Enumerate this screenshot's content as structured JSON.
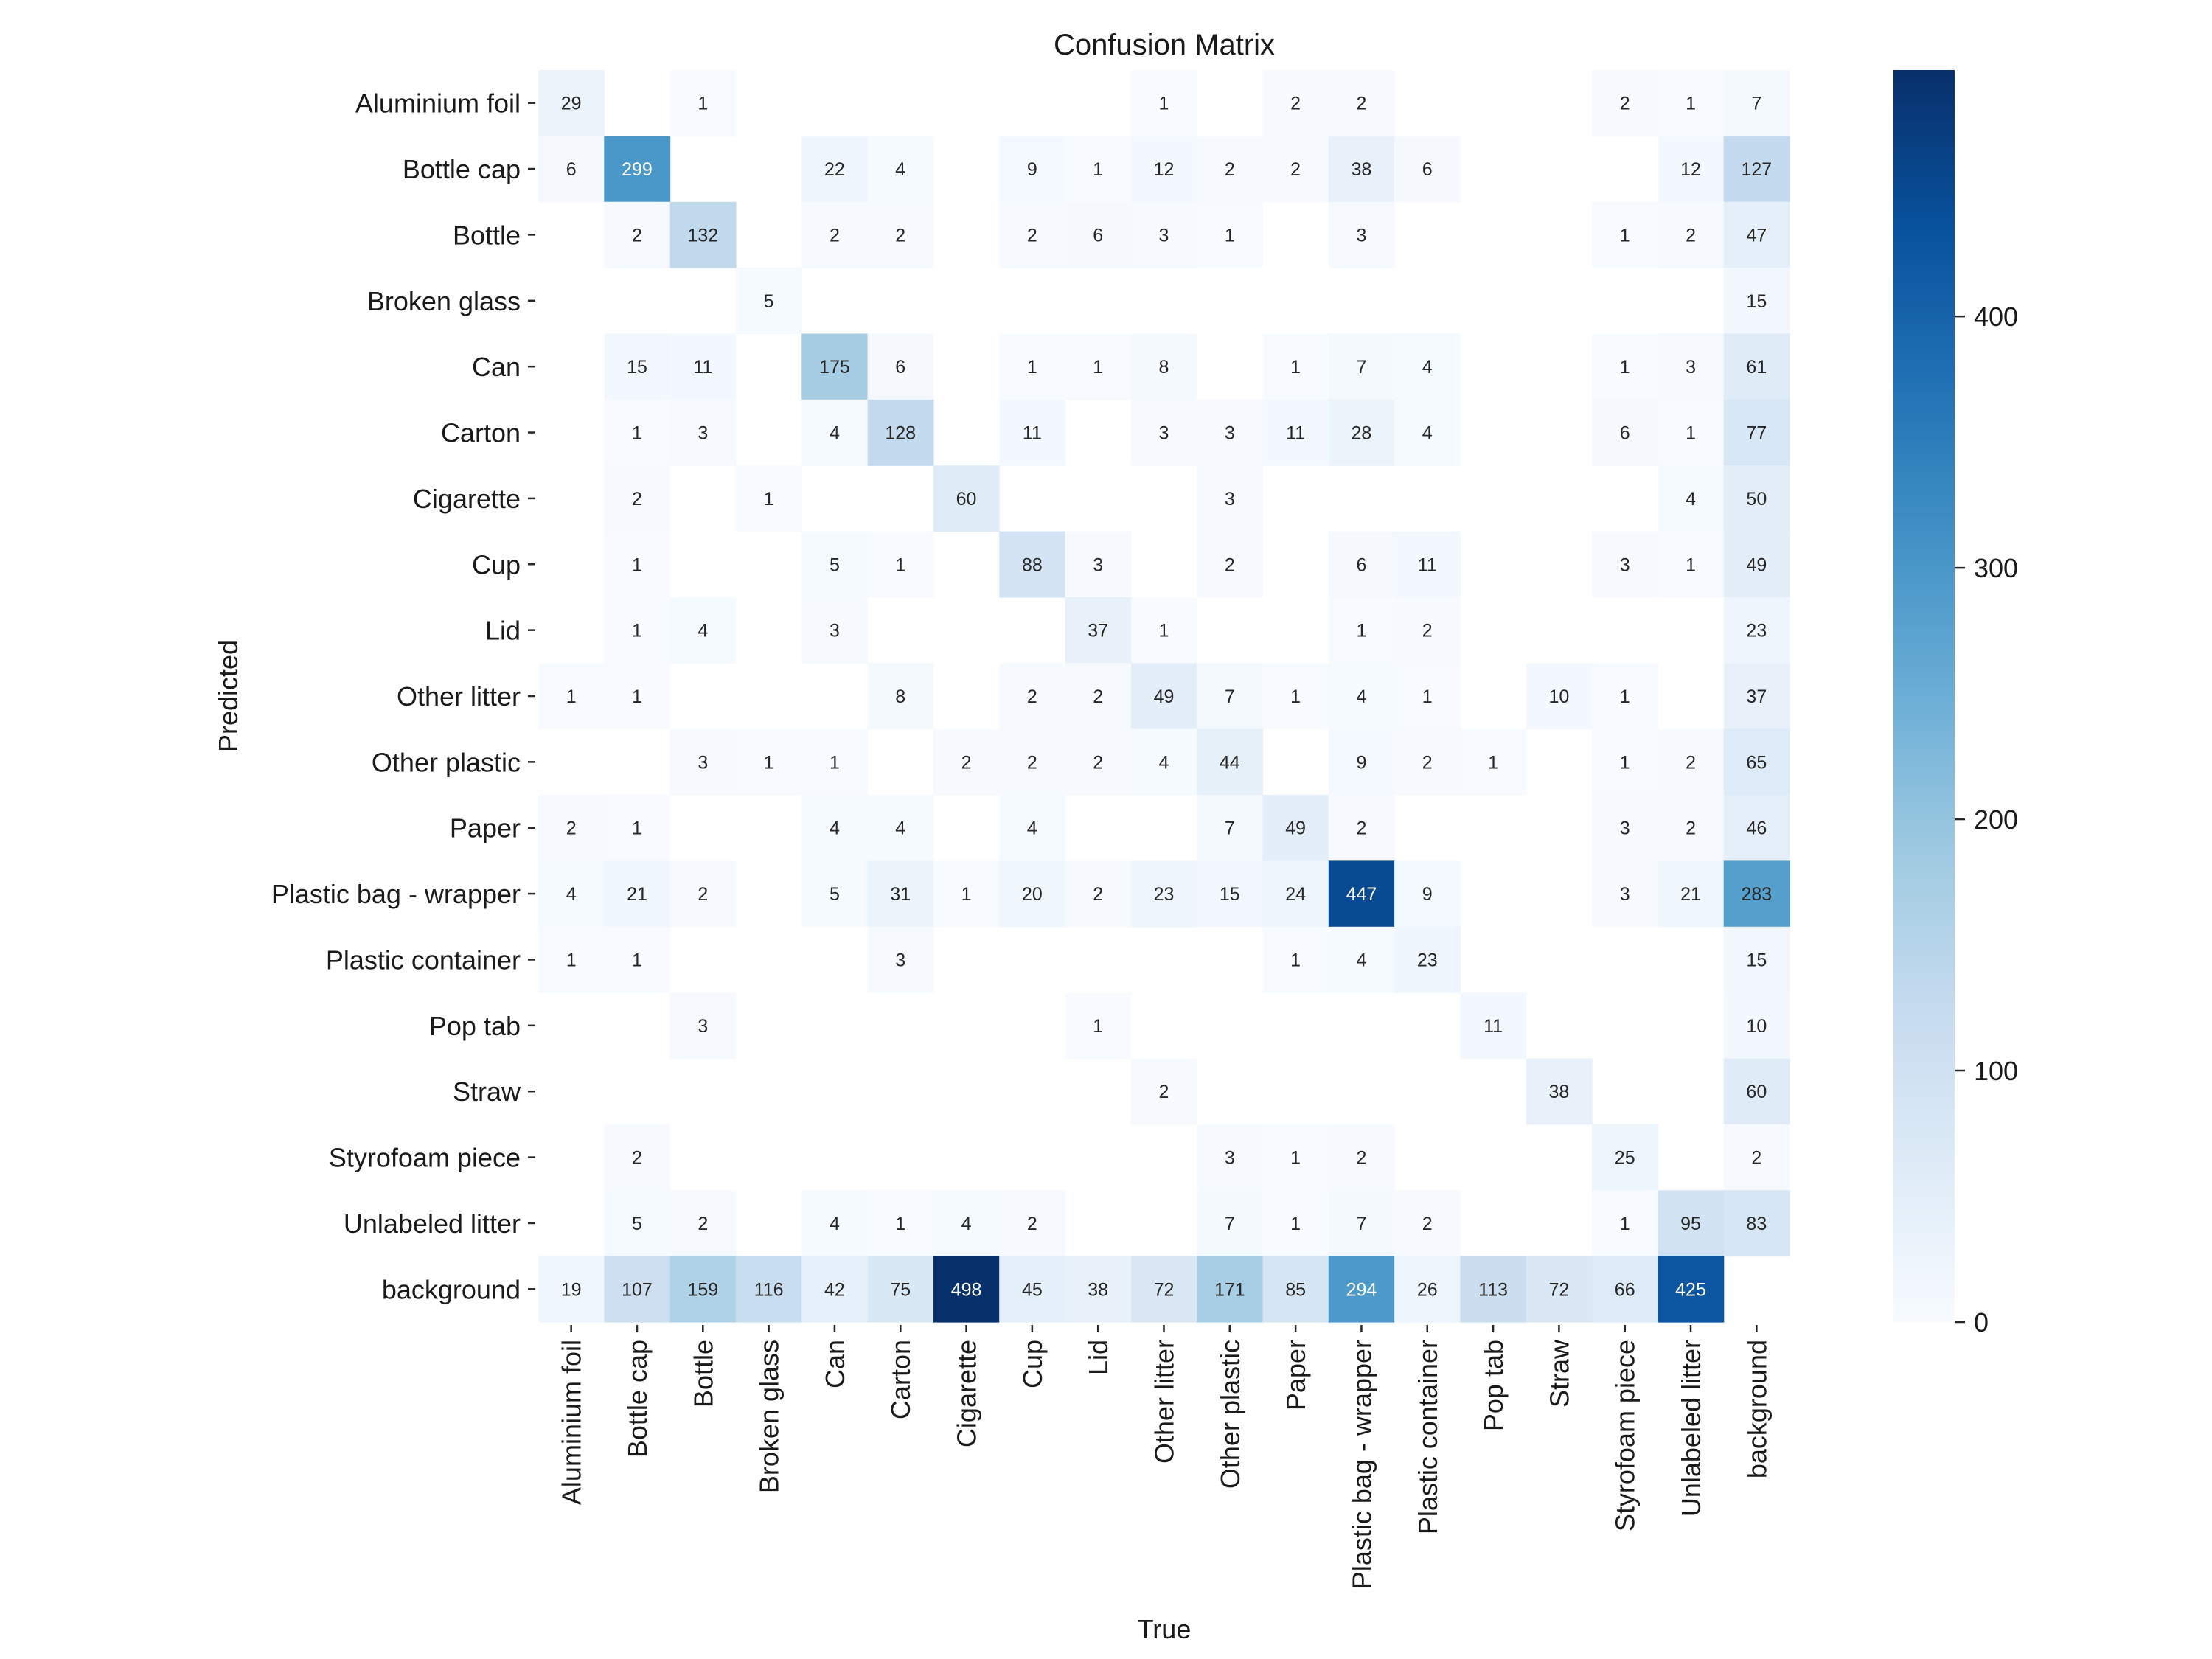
{
  "chart_data": {
    "type": "heatmap",
    "title": "Confusion Matrix",
    "xlabel": "True",
    "ylabel": "Predicted",
    "colormap": "Blues",
    "colorbar": {
      "min": 0,
      "max": 498,
      "ticks": [
        0,
        100,
        200,
        300,
        400
      ],
      "tick_labels": [
        "0",
        "100",
        "200",
        "300",
        "400"
      ],
      "low_color": "#f7fbff",
      "high_color": "#08306b"
    },
    "x_categories": [
      "Aluminium foil",
      "Bottle cap",
      "Bottle",
      "Broken glass",
      "Can",
      "Carton",
      "Cigarette",
      "Cup",
      "Lid",
      "Other litter",
      "Other plastic",
      "Paper",
      "Plastic bag - wrapper",
      "Plastic container",
      "Pop tab",
      "Straw",
      "Styrofoam piece",
      "Unlabeled litter",
      "background"
    ],
    "y_categories": [
      "Aluminium foil",
      "Bottle cap",
      "Bottle",
      "Broken glass",
      "Can",
      "Carton",
      "Cigarette",
      "Cup",
      "Lid",
      "Other litter",
      "Other plastic",
      "Paper",
      "Plastic bag - wrapper",
      "Plastic container",
      "Pop tab",
      "Straw",
      "Styrofoam piece",
      "Unlabeled litter",
      "background"
    ],
    "note": "rows = Predicted, columns = True; null = empty (zero, not annotated)",
    "matrix": [
      [
        29,
        null,
        1,
        null,
        null,
        null,
        null,
        null,
        null,
        1,
        null,
        2,
        2,
        null,
        null,
        null,
        2,
        1,
        7
      ],
      [
        6,
        299,
        null,
        null,
        22,
        4,
        null,
        9,
        1,
        12,
        2,
        2,
        38,
        6,
        null,
        null,
        null,
        12,
        127
      ],
      [
        null,
        2,
        132,
        null,
        2,
        2,
        null,
        2,
        6,
        3,
        1,
        null,
        3,
        null,
        null,
        null,
        1,
        2,
        47
      ],
      [
        null,
        null,
        null,
        5,
        null,
        null,
        null,
        null,
        null,
        null,
        null,
        null,
        null,
        null,
        null,
        null,
        null,
        null,
        15
      ],
      [
        null,
        15,
        11,
        null,
        175,
        6,
        null,
        1,
        1,
        8,
        null,
        1,
        7,
        4,
        null,
        null,
        1,
        3,
        61
      ],
      [
        null,
        1,
        3,
        null,
        4,
        128,
        null,
        11,
        null,
        3,
        3,
        11,
        28,
        4,
        null,
        null,
        6,
        1,
        77
      ],
      [
        null,
        2,
        null,
        1,
        null,
        null,
        60,
        null,
        null,
        null,
        3,
        null,
        null,
        null,
        null,
        null,
        null,
        4,
        50
      ],
      [
        null,
        1,
        null,
        null,
        5,
        1,
        null,
        88,
        3,
        null,
        2,
        null,
        6,
        11,
        null,
        null,
        3,
        1,
        49
      ],
      [
        null,
        1,
        4,
        null,
        3,
        null,
        null,
        null,
        37,
        1,
        null,
        null,
        1,
        2,
        null,
        null,
        null,
        null,
        23
      ],
      [
        1,
        1,
        null,
        null,
        null,
        8,
        null,
        2,
        2,
        49,
        7,
        1,
        4,
        1,
        null,
        10,
        1,
        null,
        37
      ],
      [
        null,
        null,
        3,
        1,
        1,
        null,
        2,
        2,
        2,
        4,
        44,
        null,
        9,
        2,
        1,
        null,
        1,
        2,
        65
      ],
      [
        2,
        1,
        null,
        null,
        4,
        4,
        null,
        4,
        null,
        null,
        7,
        49,
        2,
        null,
        null,
        null,
        3,
        2,
        46
      ],
      [
        4,
        21,
        2,
        null,
        5,
        31,
        1,
        20,
        2,
        23,
        15,
        24,
        447,
        9,
        null,
        null,
        3,
        21,
        283
      ],
      [
        1,
        1,
        null,
        null,
        null,
        3,
        null,
        null,
        null,
        null,
        null,
        1,
        4,
        23,
        null,
        null,
        null,
        null,
        15
      ],
      [
        null,
        null,
        3,
        null,
        null,
        null,
        null,
        null,
        1,
        null,
        null,
        null,
        null,
        null,
        11,
        null,
        null,
        null,
        10
      ],
      [
        null,
        null,
        null,
        null,
        null,
        null,
        null,
        null,
        null,
        2,
        null,
        null,
        null,
        null,
        null,
        38,
        null,
        null,
        60
      ],
      [
        null,
        2,
        null,
        null,
        null,
        null,
        null,
        null,
        null,
        null,
        3,
        1,
        2,
        null,
        null,
        null,
        25,
        null,
        2
      ],
      [
        null,
        5,
        2,
        null,
        4,
        1,
        4,
        2,
        null,
        null,
        7,
        1,
        7,
        2,
        null,
        null,
        1,
        95,
        83
      ],
      [
        19,
        107,
        159,
        116,
        42,
        75,
        498,
        45,
        38,
        72,
        171,
        85,
        294,
        26,
        113,
        72,
        66,
        425,
        null
      ]
    ]
  }
}
